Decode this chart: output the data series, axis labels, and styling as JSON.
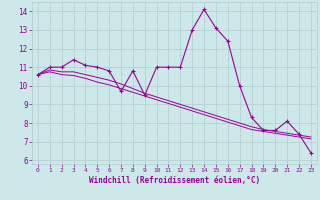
{
  "xlabel": "Windchill (Refroidissement éolien,°C)",
  "bg_color": "#cde8e8",
  "line_color": "#990099",
  "grid_color": "#b0cccc",
  "x_hours": [
    0,
    1,
    2,
    3,
    4,
    5,
    6,
    7,
    8,
    9,
    10,
    11,
    12,
    13,
    14,
    15,
    16,
    17,
    18,
    19,
    20,
    21,
    22,
    23
  ],
  "y_actual": [
    10.6,
    11.0,
    11.0,
    11.4,
    11.1,
    11.0,
    10.8,
    9.7,
    10.8,
    9.5,
    11.0,
    11.0,
    11.0,
    13.0,
    14.1,
    13.1,
    12.4,
    10.0,
    8.3,
    7.6,
    7.6,
    8.1,
    7.4,
    6.4
  ],
  "y_trend1": [
    10.6,
    10.75,
    10.6,
    10.55,
    10.4,
    10.2,
    10.05,
    9.85,
    9.65,
    9.45,
    9.25,
    9.05,
    8.85,
    8.65,
    8.45,
    8.25,
    8.05,
    7.85,
    7.65,
    7.55,
    7.45,
    7.35,
    7.25,
    7.15
  ],
  "y_trend2": [
    10.6,
    10.85,
    10.75,
    10.75,
    10.6,
    10.45,
    10.3,
    10.1,
    9.85,
    9.6,
    9.4,
    9.2,
    9.0,
    8.8,
    8.6,
    8.4,
    8.2,
    8.0,
    7.8,
    7.65,
    7.55,
    7.45,
    7.35,
    7.25
  ],
  "ylim": [
    5.8,
    14.5
  ],
  "yticks": [
    6,
    7,
    8,
    9,
    10,
    11,
    12,
    13,
    14
  ],
  "xlim": [
    -0.5,
    23.5
  ],
  "xticks": [
    0,
    1,
    2,
    3,
    4,
    5,
    6,
    7,
    8,
    9,
    10,
    11,
    12,
    13,
    14,
    15,
    16,
    17,
    18,
    19,
    20,
    21,
    22,
    23
  ]
}
